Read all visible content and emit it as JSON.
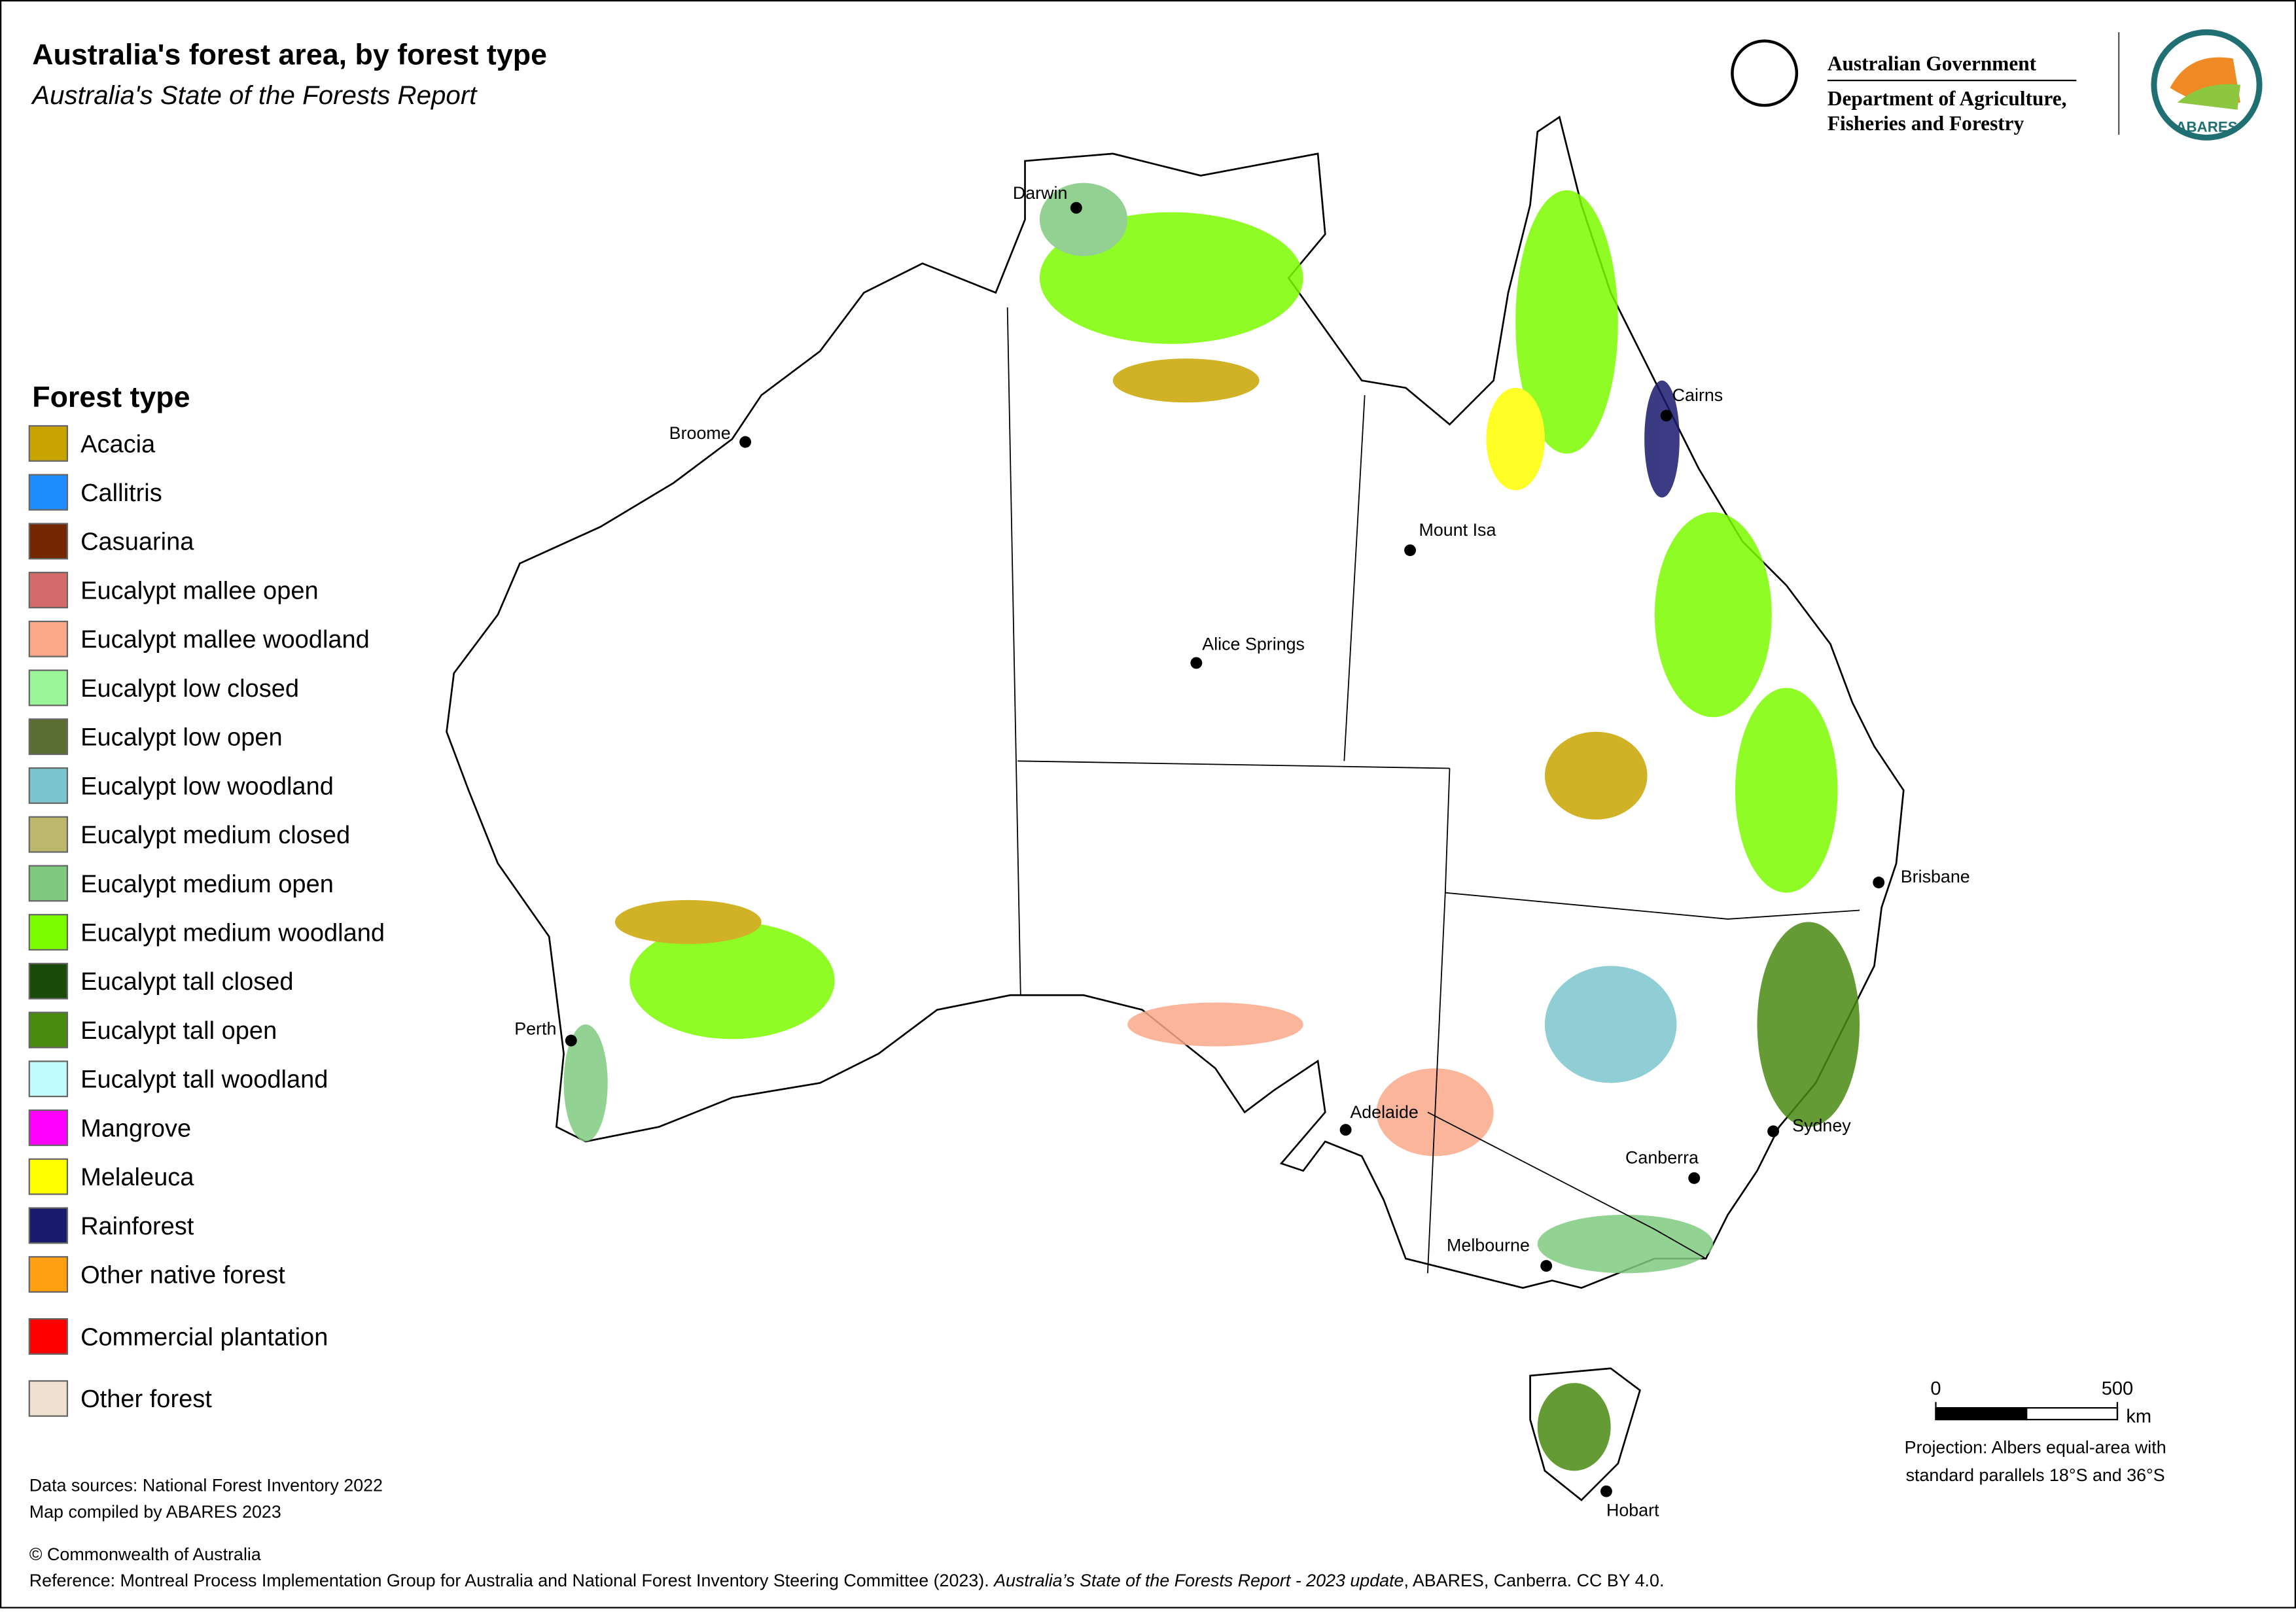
{
  "header": {
    "title": "Australia's forest area, by forest type",
    "subtitle": "Australia's State of the Forests Report"
  },
  "logos": {
    "government": "Australian Government",
    "department": [
      "Department of Agriculture,",
      "Fisheries and Forestry"
    ],
    "abares": "ABARES"
  },
  "legend": {
    "title": "Forest type",
    "items": [
      {
        "name": "Acacia",
        "color": "#c9a400"
      },
      {
        "name": "Callitris",
        "color": "#1e8cff"
      },
      {
        "name": "Casuarina",
        "color": "#732600"
      },
      {
        "name": "Eucalypt mallee open",
        "color": "#d46a6a"
      },
      {
        "name": "Eucalypt mallee woodland",
        "color": "#f9a88a"
      },
      {
        "name": "Eucalypt low closed",
        "color": "#98f598"
      },
      {
        "name": "Eucalypt low open",
        "color": "#5a6e32"
      },
      {
        "name": "Eucalypt low woodland",
        "color": "#7ac5cd"
      },
      {
        "name": "Eucalypt medium closed",
        "color": "#bdb76b"
      },
      {
        "name": "Eucalypt medium open",
        "color": "#7fca7f"
      },
      {
        "name": "Eucalypt medium woodland",
        "color": "#7cfc00"
      },
      {
        "name": "Eucalypt tall closed",
        "color": "#1a4a0a"
      },
      {
        "name": "Eucalypt tall open",
        "color": "#4a8a10"
      },
      {
        "name": "Eucalypt tall woodland",
        "color": "#c0fcfc"
      },
      {
        "name": "Mangrove",
        "color": "#ff00ff"
      },
      {
        "name": "Melaleuca",
        "color": "#ffff00"
      },
      {
        "name": "Rainforest",
        "color": "#1a1a6e"
      },
      {
        "name": "Other native forest",
        "color": "#ffa010"
      },
      {
        "name": "Commercial plantation",
        "color": "#ff0000"
      },
      {
        "name": "Other forest",
        "color": "#f0e0d0"
      }
    ]
  },
  "cities": [
    "Darwin",
    "Broome",
    "Cairns",
    "Mount Isa",
    "Alice Springs",
    "Brisbane",
    "Perth",
    "Adelaide",
    "Sydney",
    "Canberra",
    "Melbourne",
    "Hobart"
  ],
  "scale_bar": {
    "ticks": [
      0,
      500
    ],
    "unit": "km"
  },
  "projection": [
    "Projection: Albers equal-area with",
    "standard parallels 18°S and 36°S"
  ],
  "sources": [
    "Data sources: National Forest Inventory 2022",
    "Map compiled by ABARES 2023"
  ],
  "copyright": "© Commonwealth of Australia",
  "reference": [
    "Reference: Montreal Process Implementation Group for Australia and National Forest Inventory Steering Committee (2023). ",
    "Australia’s State of the Forests Report - 2023 update",
    ", ABARES, Canberra. CC BY 4.0."
  ]
}
